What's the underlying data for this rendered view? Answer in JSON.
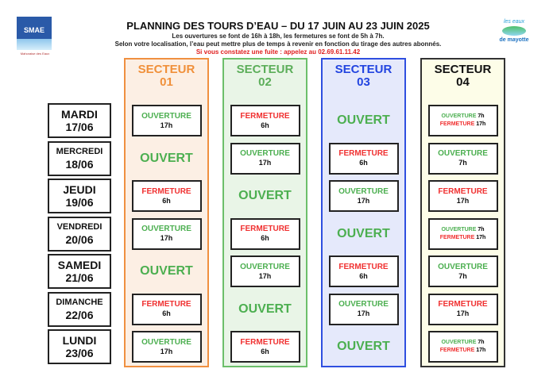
{
  "header": {
    "logo_left": "SMAE",
    "logo_left_sub": "Mahoraise des Eaux",
    "title": "PLANNING DES TOURS D’EAU – DU 17 JUIN AU 23 JUIN 2025",
    "line1": "Les ouvertures se font de 16h à 18h, les fermetures se font de 5h à 7h.",
    "line2": "Selon votre localisation, l’eau peut mettre plus de temps à revenir en fonction du tirage des autres abonnés.",
    "alert": "Si vous constatez une fuite : appelez au 02.69.61.11.42",
    "logo_right_top": "les eaux",
    "logo_right_bottom": "de mayotte"
  },
  "colors": {
    "open": "#4caf50",
    "close": "#f03030",
    "alert": "#e02020"
  },
  "sectors": [
    {
      "label": "SECTEUR",
      "num": "01",
      "color": "#f09040",
      "bg": "#fcefe4",
      "text": "#f0903a"
    },
    {
      "label": "SECTEUR",
      "num": "02",
      "color": "#6cbf6a",
      "bg": "#e9f5e7",
      "text": "#5cae5a"
    },
    {
      "label": "SECTEUR",
      "num": "03",
      "color": "#2f4fe0",
      "bg": "#e5e9fb",
      "text": "#2244e0"
    },
    {
      "label": "SECTEUR",
      "num": "04",
      "color": "#333333",
      "bg": "#fdfde8",
      "text": "#111111"
    }
  ],
  "days": [
    {
      "name": "MARDI",
      "date": "17/06",
      "cells": [
        {
          "type": "open",
          "label": "OUVERTURE",
          "time": "17h"
        },
        {
          "type": "close",
          "label": "FERMETURE",
          "time": "6h"
        },
        {
          "type": "ouvert",
          "label": "OUVERT"
        },
        {
          "type": "combo",
          "open_label": "OUVERTURE",
          "open_time": "7h",
          "close_label": "FERMETURE",
          "close_time": "17h"
        }
      ]
    },
    {
      "name": "MERCREDI",
      "date": "18/06",
      "cells": [
        {
          "type": "ouvert",
          "label": "OUVERT"
        },
        {
          "type": "open",
          "label": "OUVERTURE",
          "time": "17h"
        },
        {
          "type": "close",
          "label": "FERMETURE",
          "time": "6h"
        },
        {
          "type": "open",
          "label": "OUVERTURE",
          "time": "7h"
        }
      ]
    },
    {
      "name": "JEUDI",
      "date": "19/06",
      "cells": [
        {
          "type": "close",
          "label": "FERMETURE",
          "time": "6h"
        },
        {
          "type": "ouvert",
          "label": "OUVERT"
        },
        {
          "type": "open",
          "label": "OUVERTURE",
          "time": "17h"
        },
        {
          "type": "close",
          "label": "FERMETURE",
          "time": "17h"
        }
      ]
    },
    {
      "name": "VENDREDI",
      "date": "20/06",
      "cells": [
        {
          "type": "open",
          "label": "OUVERTURE",
          "time": "17h"
        },
        {
          "type": "close",
          "label": "FERMETURE",
          "time": "6h"
        },
        {
          "type": "ouvert",
          "label": "OUVERT"
        },
        {
          "type": "combo",
          "open_label": "OUVERTURE",
          "open_time": "7h",
          "close_label": "FERMETURE",
          "close_time": "17h"
        }
      ]
    },
    {
      "name": "SAMEDI",
      "date": "21/06",
      "cells": [
        {
          "type": "ouvert",
          "label": "OUVERT"
        },
        {
          "type": "open",
          "label": "OUVERTURE",
          "time": "17h"
        },
        {
          "type": "close",
          "label": "FERMETURE",
          "time": "6h"
        },
        {
          "type": "open",
          "label": "OUVERTURE",
          "time": "7h"
        }
      ]
    },
    {
      "name": "DIMANCHE",
      "date": "22/06",
      "cells": [
        {
          "type": "close",
          "label": "FERMETURE",
          "time": "6h"
        },
        {
          "type": "ouvert",
          "label": "OUVERT"
        },
        {
          "type": "open",
          "label": "OUVERTURE",
          "time": "17h"
        },
        {
          "type": "close",
          "label": "FERMETURE",
          "time": "17h"
        }
      ]
    },
    {
      "name": "LUNDI",
      "date": "23/06",
      "cells": [
        {
          "type": "open",
          "label": "OUVERTURE",
          "time": "17h"
        },
        {
          "type": "close",
          "label": "FERMETURE",
          "time": "6h"
        },
        {
          "type": "ouvert",
          "label": "OUVERT"
        },
        {
          "type": "combo",
          "open_label": "OUVERTURE",
          "open_time": "7h",
          "close_label": "FERMETURE",
          "close_time": "17h"
        }
      ]
    }
  ]
}
